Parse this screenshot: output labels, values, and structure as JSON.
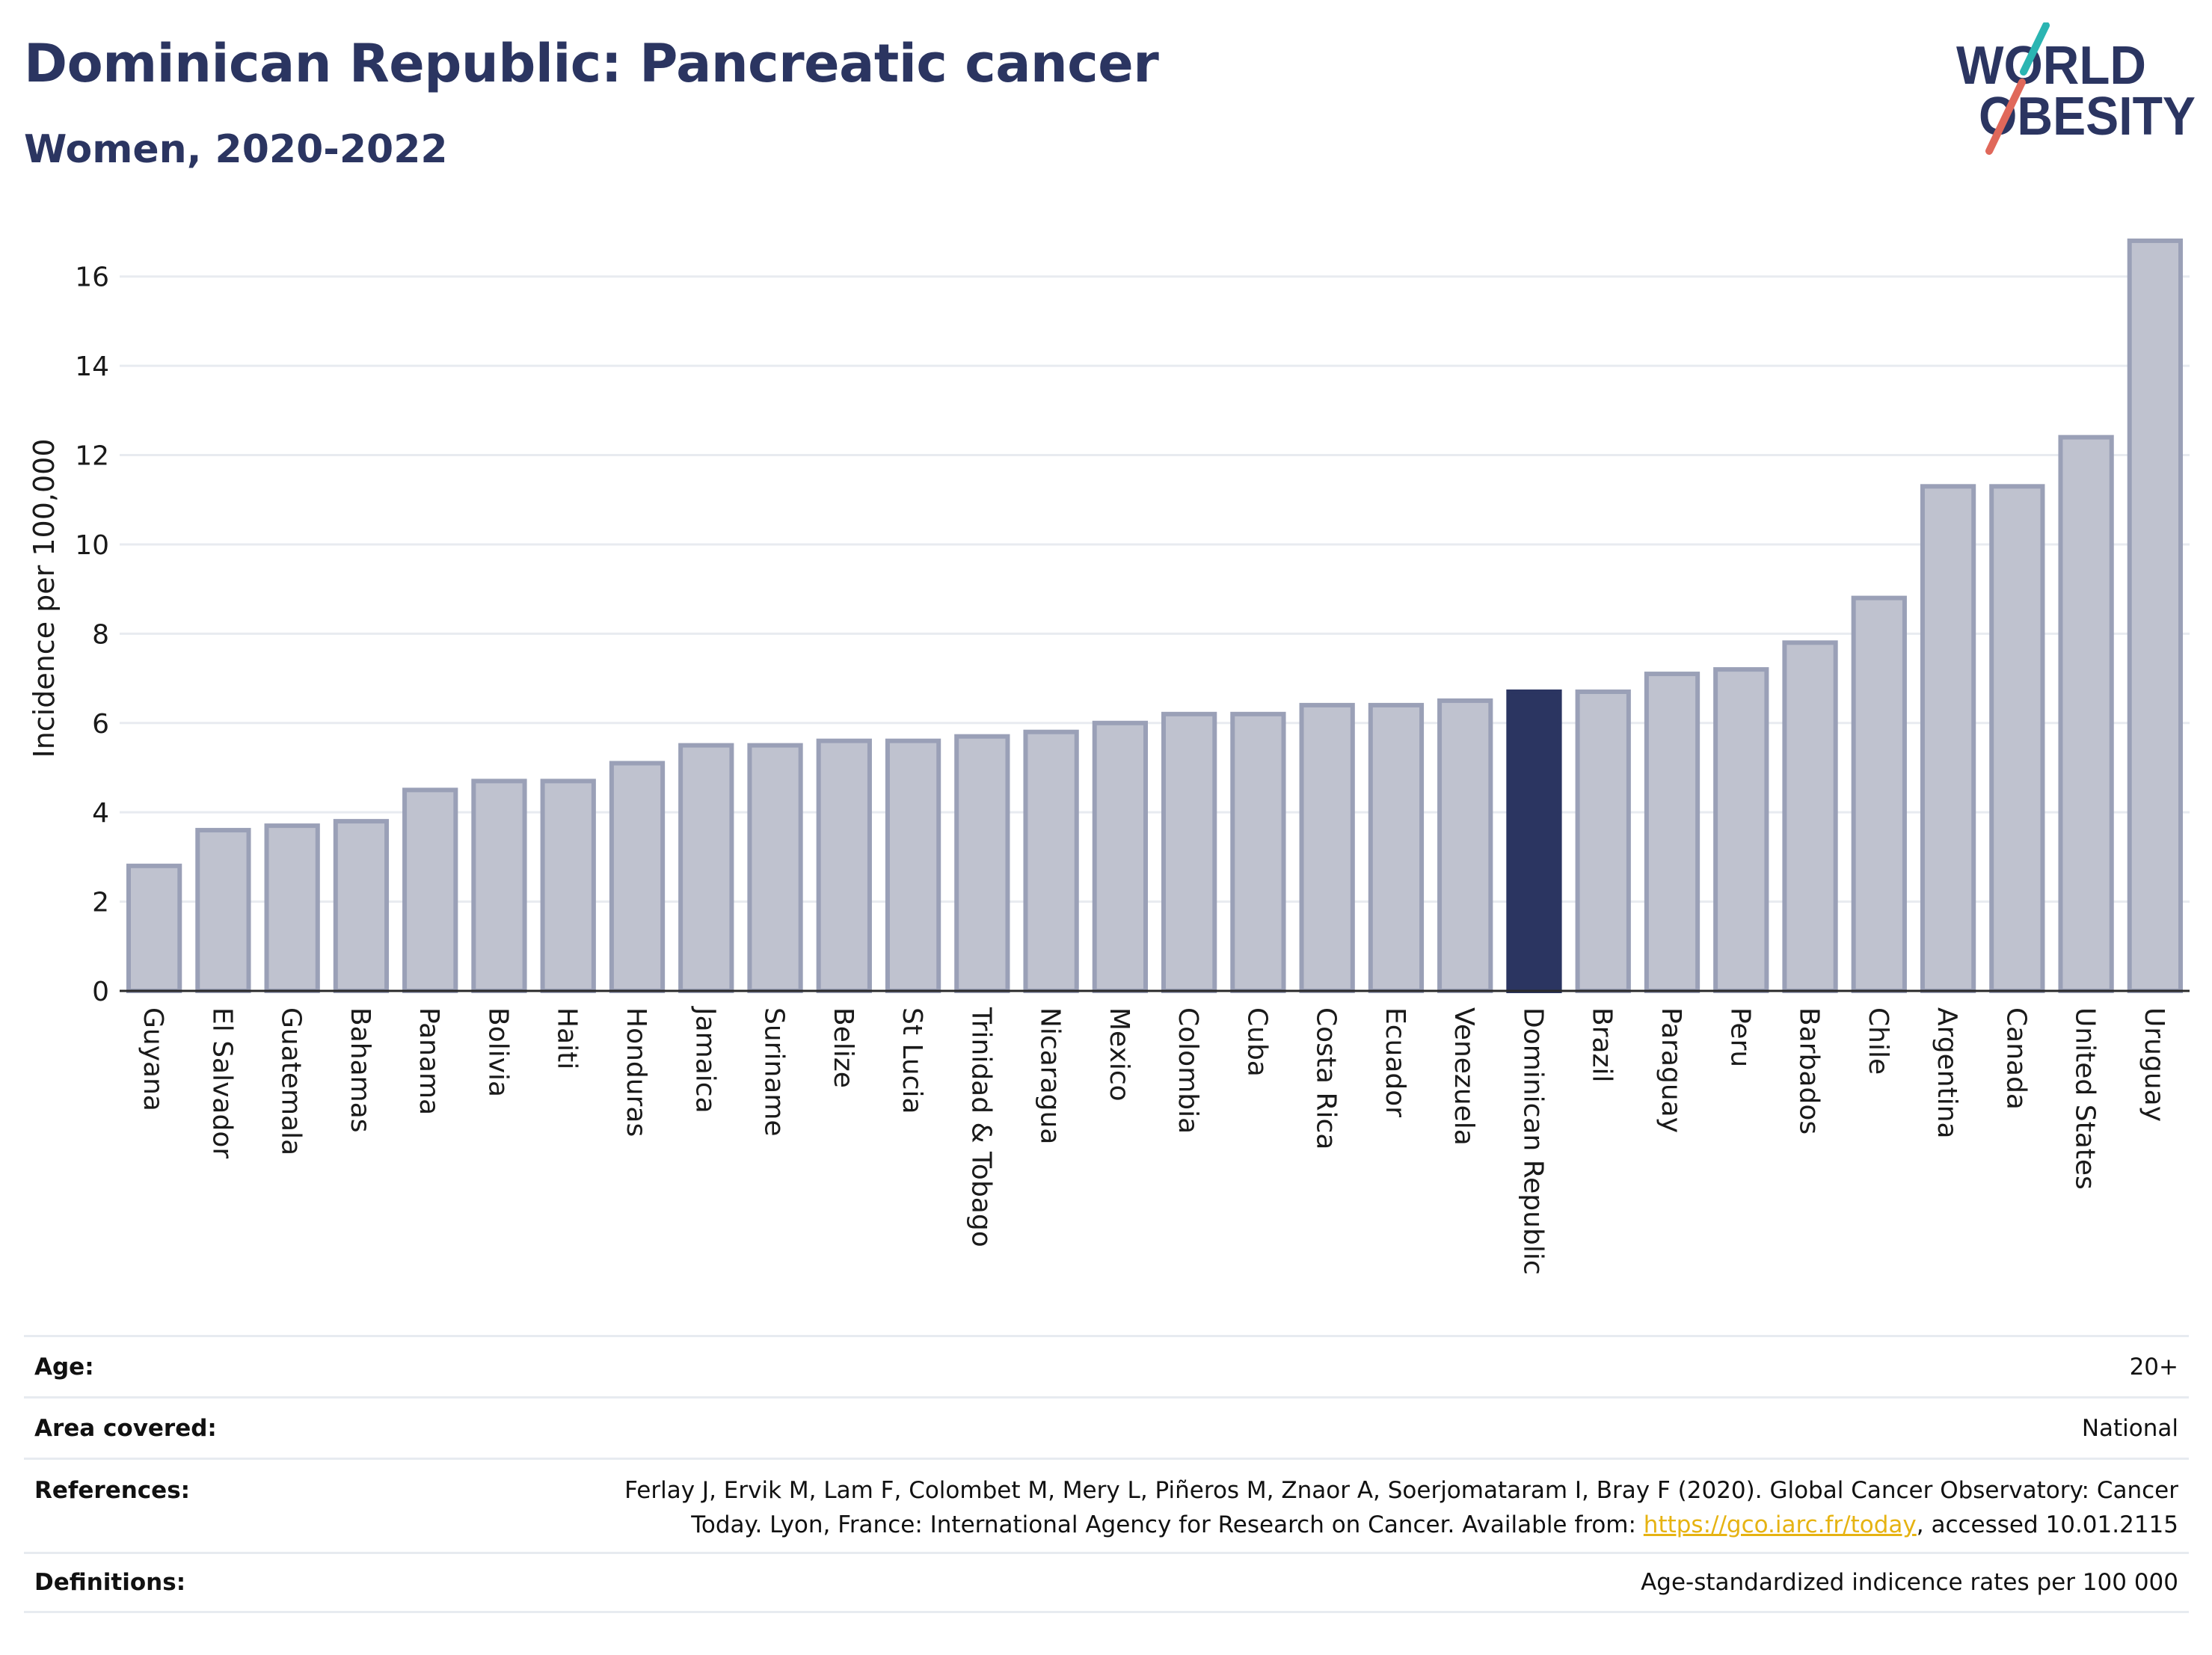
{
  "header": {
    "title": "Dominican Republic: Pancreatic cancer",
    "subtitle": "Women, 2020-2022"
  },
  "logo": {
    "line1": "WORLD",
    "line2": "OBESITY",
    "colors": {
      "text": "#2b3561",
      "slash_top": "#2bb5b2",
      "slash_bottom": "#e0685a"
    }
  },
  "colors": {
    "bar": "#bfc2cf",
    "bar_border": "#9aa0b7",
    "highlight": "#2b3561",
    "grid": "#e8ebf0",
    "axis": "#2a2a2a"
  },
  "chart_data": {
    "type": "bar",
    "ylabel": "Incidence per 100,000",
    "ylim": [
      0,
      17
    ],
    "yticks": [
      0,
      2,
      4,
      6,
      8,
      10,
      12,
      14,
      16
    ],
    "grid": true,
    "highlight": "Dominican Republic",
    "categories": [
      "Guyana",
      "El Salvador",
      "Guatemala",
      "Bahamas",
      "Panama",
      "Bolivia",
      "Haiti",
      "Honduras",
      "Jamaica",
      "Suriname",
      "Belize",
      "St Lucia",
      "Trinidad & Tobago",
      "Nicaragua",
      "Mexico",
      "Colombia",
      "Cuba",
      "Costa Rica",
      "Ecuador",
      "Venezuela",
      "Dominican Republic",
      "Brazil",
      "Paraguay",
      "Peru",
      "Barbados",
      "Chile",
      "Argentina",
      "Canada",
      "United States",
      "Uruguay"
    ],
    "values": [
      2.8,
      3.6,
      3.7,
      3.8,
      4.5,
      4.7,
      4.7,
      5.1,
      5.5,
      5.5,
      5.6,
      5.6,
      5.7,
      5.8,
      6.0,
      6.2,
      6.2,
      6.4,
      6.4,
      6.5,
      6.7,
      6.7,
      7.1,
      7.2,
      7.8,
      8.8,
      11.3,
      11.3,
      12.4,
      16.8
    ]
  },
  "meta": {
    "age_label": "Age:",
    "age_value": "20+",
    "area_label": "Area covered:",
    "area_value": "National",
    "references_label": "References:",
    "references_line1": "Ferlay J, Ervik M, Lam F, Colombet M, Mery L, Piñeros M, Znaor A, Soerjomataram I, Bray F (2020). Global Cancer Observatory: Cancer",
    "references_line2_prefix": "Today. Lyon, France: International Agency for Research on Cancer. Available from: ",
    "references_link": "https://gco.iarc.fr/today",
    "references_line2_suffix": ", accessed 10.01.2115",
    "definitions_label": "Definitions:",
    "definitions_value": "Age-standardized indicence rates per 100 000"
  }
}
